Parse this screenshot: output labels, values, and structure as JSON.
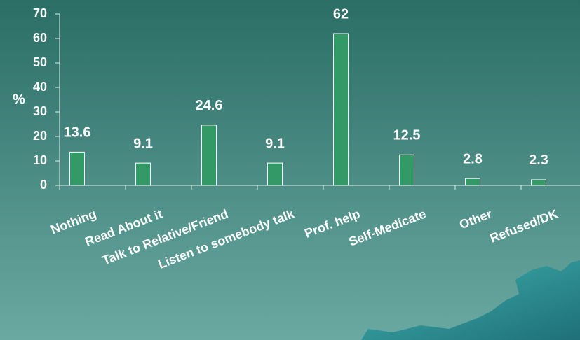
{
  "chart_data": {
    "type": "bar",
    "y_label": "%",
    "categories": [
      "Nothing",
      "Read About it",
      "Talk to Relative/Friend",
      "Listen to somebody talk",
      "Prof. help",
      "Self-Medicate",
      "Other",
      "Refused/DK"
    ],
    "values": [
      13.6,
      9.1,
      24.6,
      9.1,
      62,
      12.5,
      2.8,
      2.3
    ],
    "color": "#339966",
    "ylim": [
      0,
      70
    ],
    "yticks": [
      0,
      10,
      20,
      30,
      40,
      50,
      60,
      70
    ],
    "grid": false
  }
}
